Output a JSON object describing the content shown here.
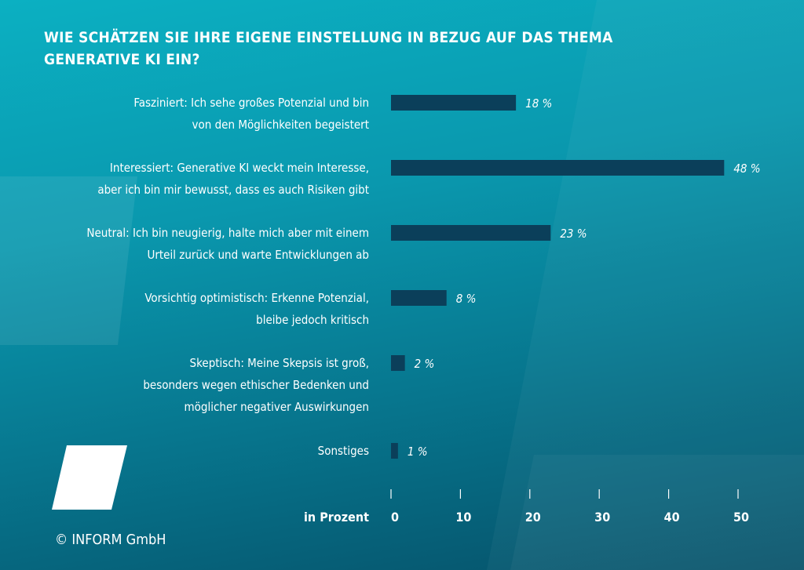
{
  "chart_data": {
    "type": "bar",
    "orientation": "horizontal",
    "title": "WIE SCHÄTZEN SIE IHRE EIGENE EINSTELLUNG IN BEZUG AUF DAS THEMA GENERATIVE KI EIN?",
    "title_lines": [
      "WIE SCHÄTZEN SIE IHRE EIGENE EINSTELLUNG IN BEZUG AUF DAS THEMA",
      "GENERATIVE KI EIN?"
    ],
    "categories": [
      [
        "Fasziniert: Ich sehe großes Potenzial und bin",
        "von den Möglichkeiten begeistert"
      ],
      [
        "Interessiert: Generative KI weckt mein Interesse,",
        "aber ich bin mir bewusst, dass es auch Risiken gibt"
      ],
      [
        "Neutral: Ich bin neugierig, halte mich aber mit einem",
        "Urteil zurück und warte Entwicklungen ab"
      ],
      [
        "Vorsichtig optimistisch: Erkenne Potenzial,",
        "bleibe jedoch kritisch"
      ],
      [
        "Skeptisch: Meine Skepsis ist groß,",
        "besonders wegen ethischer Bedenken und",
        "möglicher negativer Auswirkungen"
      ],
      [
        "Sonstiges"
      ]
    ],
    "values": [
      18,
      48,
      23,
      8,
      2,
      1
    ],
    "data_labels": [
      "18 %",
      "48 %",
      "23 %",
      "8 %",
      "2 %",
      "1 %"
    ],
    "xlabel": "in Prozent",
    "xticks": [
      0,
      10,
      20,
      30,
      40,
      50
    ],
    "xlim": [
      0,
      50
    ],
    "grid": false,
    "colors": {
      "bar": "#0b3f5a",
      "background_top": "#0bb0c2",
      "background_bottom": "#055068",
      "text": "#ffffff"
    }
  },
  "footer": {
    "copyright": "© INFORM GmbH"
  }
}
